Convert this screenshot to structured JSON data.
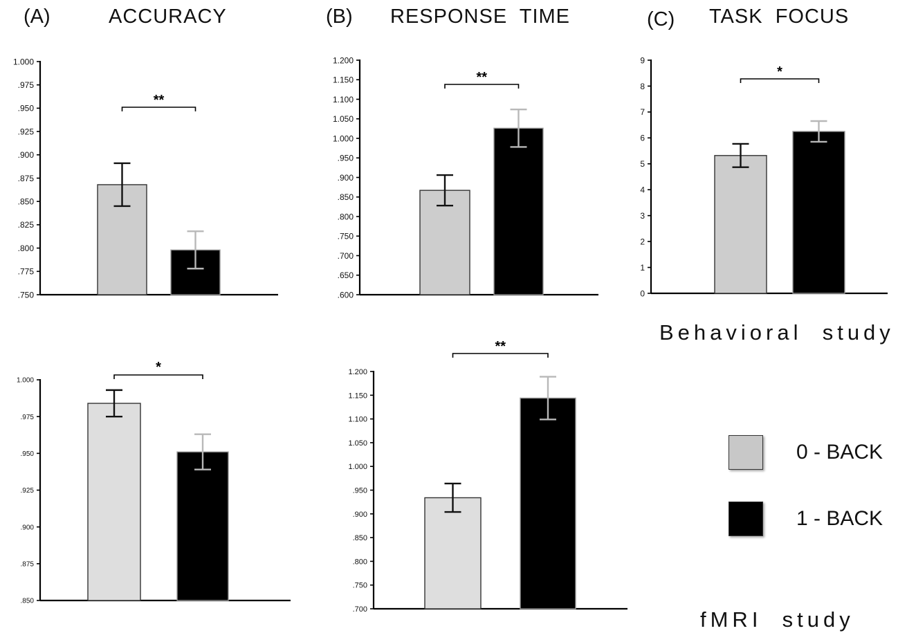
{
  "panels": [
    {
      "letter": "(A)",
      "title": "ACCURACY"
    },
    {
      "letter": "(B)",
      "title": "RESPONSE  TIME"
    },
    {
      "letter": "(C)",
      "title": "TASK  FOCUS"
    }
  ],
  "study_labels": {
    "behavioral": "Behavioral  study",
    "fmri": "fMRI  study"
  },
  "legend": [
    {
      "label": "0 - BACK",
      "color": "#c8c8c8"
    },
    {
      "label": "1 - BACK",
      "color": "#000000"
    }
  ],
  "chart_data": [
    {
      "id": "accuracy-behavioral",
      "type": "bar",
      "panel": "(A)",
      "study": "Behavioral study",
      "categories": [
        "0 - BACK",
        "1 - BACK"
      ],
      "values": [
        0.868,
        0.798
      ],
      "errors": [
        0.023,
        0.02
      ],
      "colors": [
        "#cdcdcd",
        "#000000"
      ],
      "ylim": [
        0.75,
        1.0
      ],
      "yticks": [
        ".750",
        ".775",
        ".800",
        ".825",
        ".850",
        ".875",
        ".900",
        ".925",
        ".950",
        ".975",
        "1.000"
      ],
      "significance": "**"
    },
    {
      "id": "rt-behavioral",
      "type": "bar",
      "panel": "(B)",
      "study": "Behavioral study",
      "categories": [
        "0 - BACK",
        "1 - BACK"
      ],
      "values": [
        0.867,
        1.026
      ],
      "errors": [
        0.039,
        0.048
      ],
      "colors": [
        "#cdcdcd",
        "#000000"
      ],
      "ylim": [
        0.6,
        1.2
      ],
      "yticks": [
        ".600",
        ".650",
        ".700",
        ".750",
        ".800",
        ".850",
        ".900",
        ".950",
        "1.000",
        "1.050",
        "1.100",
        "1.150",
        "1.200"
      ],
      "significance": "**"
    },
    {
      "id": "focus-behavioral",
      "type": "bar",
      "panel": "(C)",
      "study": "Behavioral study",
      "categories": [
        "0 - BACK",
        "1 - BACK"
      ],
      "values": [
        5.32,
        6.25
      ],
      "errors": [
        0.45,
        0.4
      ],
      "colors": [
        "#cdcdcd",
        "#000000"
      ],
      "ylim": [
        0,
        9
      ],
      "yticks": [
        "0",
        "1",
        "2",
        "3",
        "4",
        "5",
        "6",
        "7",
        "8",
        "9"
      ],
      "significance": "*"
    },
    {
      "id": "accuracy-fmri",
      "type": "bar",
      "panel": "(A)",
      "study": "fMRI study",
      "categories": [
        "0 - BACK",
        "1 - BACK"
      ],
      "values": [
        0.984,
        0.951
      ],
      "errors": [
        0.009,
        0.012
      ],
      "colors": [
        "#dedede",
        "#000000"
      ],
      "ylim": [
        0.85,
        1.0
      ],
      "yticks": [
        ".850",
        ".875",
        ".900",
        ".925",
        ".950",
        ".975",
        "1.000"
      ],
      "significance": "*"
    },
    {
      "id": "rt-fmri",
      "type": "bar",
      "panel": "(B)",
      "study": "fMRI study",
      "categories": [
        "0 - BACK",
        "1 - BACK"
      ],
      "values": [
        0.934,
        1.144
      ],
      "errors": [
        0.03,
        0.045
      ],
      "colors": [
        "#dedede",
        "#000000"
      ],
      "ylim": [
        0.7,
        1.2
      ],
      "yticks": [
        ".700",
        ".750",
        ".800",
        ".850",
        ".900",
        ".950",
        "1.000",
        "1.050",
        "1.100",
        "1.150",
        "1.200"
      ],
      "significance": "**"
    }
  ]
}
